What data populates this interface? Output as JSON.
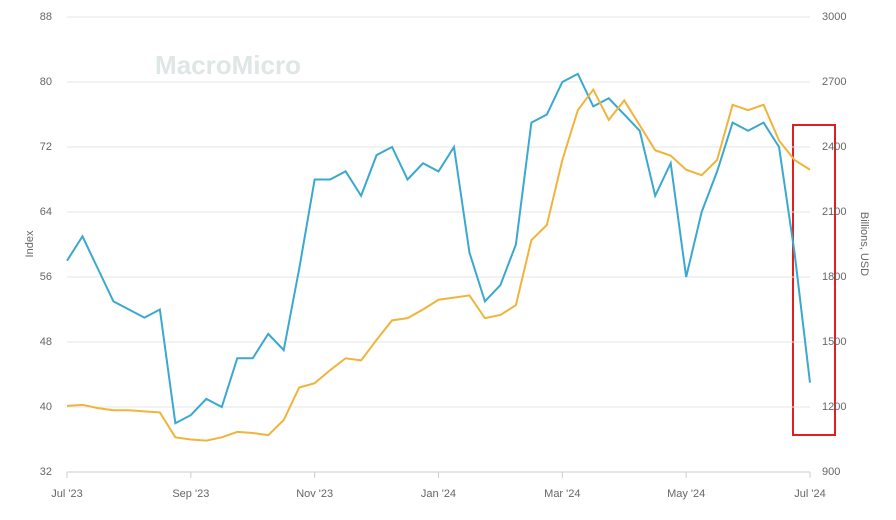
{
  "chart_data": {
    "type": "line",
    "watermark": "MacroMicro",
    "ylabel": "Index",
    "y2label": "Billions, USD",
    "xlim": [
      0,
      12
    ],
    "xticks": [
      {
        "value": 0,
        "label": "Jul '23"
      },
      {
        "value": 2,
        "label": "Sep '23"
      },
      {
        "value": 4,
        "label": "Nov '23"
      },
      {
        "value": 6,
        "label": "Jan '24"
      },
      {
        "value": 8,
        "label": "Mar '24"
      },
      {
        "value": 10,
        "label": "May '24"
      },
      {
        "value": 12,
        "label": "Jul '24"
      }
    ],
    "ylim": [
      32,
      88
    ],
    "yticks": [
      32,
      40,
      48,
      56,
      64,
      72,
      80,
      88
    ],
    "y2lim": [
      900,
      3000
    ],
    "y2ticks": [
      900,
      1200,
      1500,
      1800,
      2100,
      2400,
      2700,
      3000
    ],
    "grid": true,
    "x": [
      0,
      0.25,
      0.5,
      0.75,
      1,
      1.25,
      1.5,
      1.75,
      2,
      2.25,
      2.5,
      2.75,
      3,
      3.25,
      3.5,
      3.75,
      4,
      4.25,
      4.5,
      4.75,
      5,
      5.25,
      5.5,
      5.75,
      6,
      6.25,
      6.5,
      6.75,
      7,
      7.25,
      7.5,
      7.75,
      8,
      8.25,
      8.5,
      8.75,
      9,
      9.25,
      9.5,
      9.75,
      10,
      10.25,
      10.5,
      10.75,
      11,
      11.25,
      11.5,
      11.75,
      12
    ],
    "series": [
      {
        "color": "#3ba8cf",
        "values": [
          58,
          61,
          57,
          53,
          52,
          51,
          52,
          38,
          39,
          41,
          40,
          46,
          46,
          49,
          47,
          57,
          68,
          68,
          69,
          66,
          71,
          72,
          68,
          70,
          69,
          72,
          59,
          53,
          55,
          60,
          75,
          76,
          80,
          81,
          77,
          78,
          76,
          74,
          66,
          70,
          56,
          64,
          69,
          75,
          74,
          75,
          72,
          59,
          43
        ]
      },
      {
        "color": "#f0b43c",
        "axis": "y2",
        "values": [
          1205,
          1210,
          1195,
          1185,
          1185,
          1180,
          1175,
          1060,
          1050,
          1045,
          1060,
          1085,
          1080,
          1070,
          1140,
          1290,
          1310,
          1370,
          1425,
          1415,
          1510,
          1600,
          1610,
          1650,
          1695,
          1705,
          1715,
          1610,
          1625,
          1670,
          1970,
          2040,
          2340,
          2570,
          2665,
          2525,
          2615,
          2500,
          2385,
          2360,
          2295,
          2270,
          2340,
          2595,
          2570,
          2595,
          2430,
          2340,
          2295
        ]
      }
    ]
  }
}
